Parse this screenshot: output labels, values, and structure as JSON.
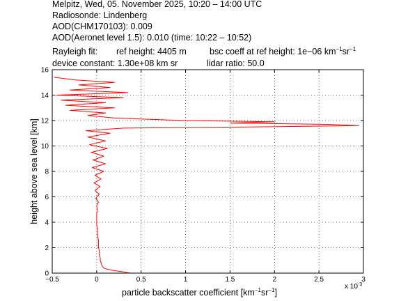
{
  "header": {
    "line1": "Melpitz, Wed, 05. November 2025, 10:20 – 14:00 UTC",
    "line2": "Radiosonde: Lindenberg",
    "line3": "AOD(CHM170103): 0.009",
    "line4": "AOD(Aeronet level 1.5): 0.010   (time: 10:22 – 10:52)",
    "rayleigh_label": "Rayleigh fit:",
    "ref_height": "ref height: 4405 m",
    "bsc_coeff_prefix": "bsc coeff at ref height: 1e−06 km",
    "device_constant": "device constant: 1.30e+08 km sr",
    "lidar_ratio": "lidar ratio: 50.0"
  },
  "chart_data": {
    "type": "line",
    "xlabel": "particle backscatter coefficient [km⁻¹sr⁻¹]",
    "xlabel_main": "particle backscatter coefficient [km",
    "ylabel": "height above sea level [km]",
    "x_multiplier": "x 10",
    "x_multiplier_exp": "-3",
    "xlim": [
      -0.5,
      3
    ],
    "ylim": [
      0,
      16
    ],
    "xticks": [
      -0.5,
      0,
      0.5,
      1,
      1.5,
      2,
      2.5,
      3
    ],
    "xtick_labels": [
      "−0.5",
      "0",
      "0.5",
      "1",
      "1.5",
      "2",
      "2.5",
      "3"
    ],
    "yticks": [
      0,
      2,
      4,
      6,
      8,
      10,
      12,
      14,
      16
    ],
    "ytick_labels": [
      "0",
      "2",
      "4",
      "6",
      "8",
      "10",
      "12",
      "14",
      "16"
    ],
    "grid": true,
    "series": [
      {
        "color": "#ff0000",
        "points": [
          [
            0.38,
            0.0
          ],
          [
            0.3,
            0.1
          ],
          [
            0.2,
            0.2
          ],
          [
            0.12,
            0.3
          ],
          [
            0.08,
            0.4
          ],
          [
            0.06,
            0.6
          ],
          [
            0.05,
            0.8
          ],
          [
            0.04,
            1.0
          ],
          [
            0.04,
            1.2
          ],
          [
            0.03,
            1.4
          ],
          [
            0.03,
            1.6
          ],
          [
            0.03,
            1.8
          ],
          [
            0.02,
            2.0
          ],
          [
            0.02,
            2.3
          ],
          [
            0.02,
            2.6
          ],
          [
            0.01,
            2.9
          ],
          [
            0.01,
            3.2
          ],
          [
            0.01,
            3.5
          ],
          [
            0.0,
            3.8
          ],
          [
            0.0,
            4.1
          ],
          [
            0.0,
            4.4
          ],
          [
            0.0,
            4.7
          ],
          [
            0.01,
            5.0
          ],
          [
            0.0,
            5.3
          ],
          [
            0.02,
            5.6
          ],
          [
            -0.01,
            5.9
          ],
          [
            0.03,
            6.2
          ],
          [
            -0.02,
            6.5
          ],
          [
            0.04,
            6.8
          ],
          [
            -0.03,
            7.1
          ],
          [
            0.05,
            7.4
          ],
          [
            -0.02,
            7.7
          ],
          [
            0.08,
            8.0
          ],
          [
            -0.05,
            8.3
          ],
          [
            0.1,
            8.6
          ],
          [
            -0.04,
            8.9
          ],
          [
            0.08,
            9.2
          ],
          [
            -0.06,
            9.5
          ],
          [
            0.12,
            9.8
          ],
          [
            -0.08,
            10.1
          ],
          [
            0.1,
            10.4
          ],
          [
            -0.1,
            10.7
          ],
          [
            0.15,
            11.0
          ],
          [
            -0.12,
            11.2
          ],
          [
            0.3,
            11.4
          ],
          [
            1.8,
            11.5
          ],
          [
            2.95,
            11.6
          ],
          [
            2.6,
            11.7
          ],
          [
            1.5,
            11.8
          ],
          [
            2.0,
            11.9
          ],
          [
            1.0,
            12.0
          ],
          [
            0.6,
            12.1
          ],
          [
            0.2,
            12.2
          ],
          [
            -0.1,
            12.4
          ],
          [
            0.1,
            12.6
          ],
          [
            -0.3,
            12.8
          ],
          [
            0.2,
            13.0
          ],
          [
            -0.35,
            13.2
          ],
          [
            0.1,
            13.4
          ],
          [
            -0.4,
            13.6
          ],
          [
            0.3,
            13.8
          ],
          [
            -0.45,
            14.0
          ],
          [
            0.35,
            14.2
          ],
          [
            -0.3,
            14.4
          ],
          [
            0.15,
            14.6
          ],
          [
            -0.2,
            14.8
          ],
          [
            0.2,
            15.0
          ],
          [
            -0.25,
            15.2
          ],
          [
            -0.48,
            15.4
          ]
        ]
      }
    ]
  }
}
